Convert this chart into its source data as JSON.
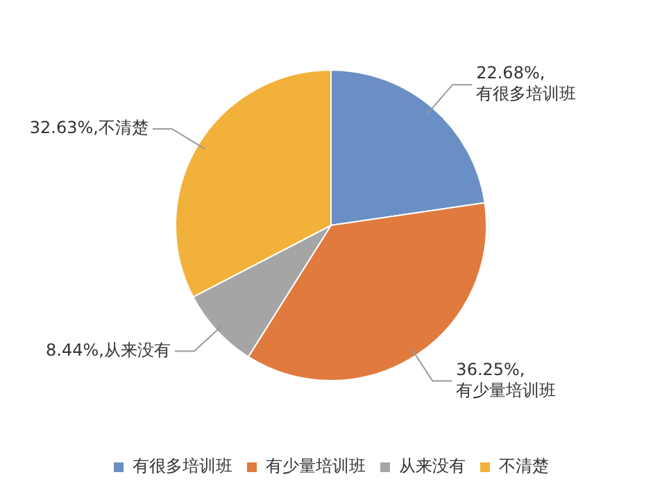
{
  "chart_data": {
    "type": "pie",
    "categories": [
      "有很多培训班",
      "有少量培训班",
      "从来没有",
      "不清楚"
    ],
    "values": [
      22.68,
      36.25,
      8.44,
      32.63
    ],
    "colors": [
      "#6a8fc4",
      "#e07a3f",
      "#a5a5a5",
      "#f2b13b"
    ],
    "value_labels": [
      "22.68%,\n有很多培训班",
      "36.25%,\n有少量培训班",
      "8.44%,从来没有",
      "32.63%,不清楚"
    ],
    "legend": "bottom"
  }
}
